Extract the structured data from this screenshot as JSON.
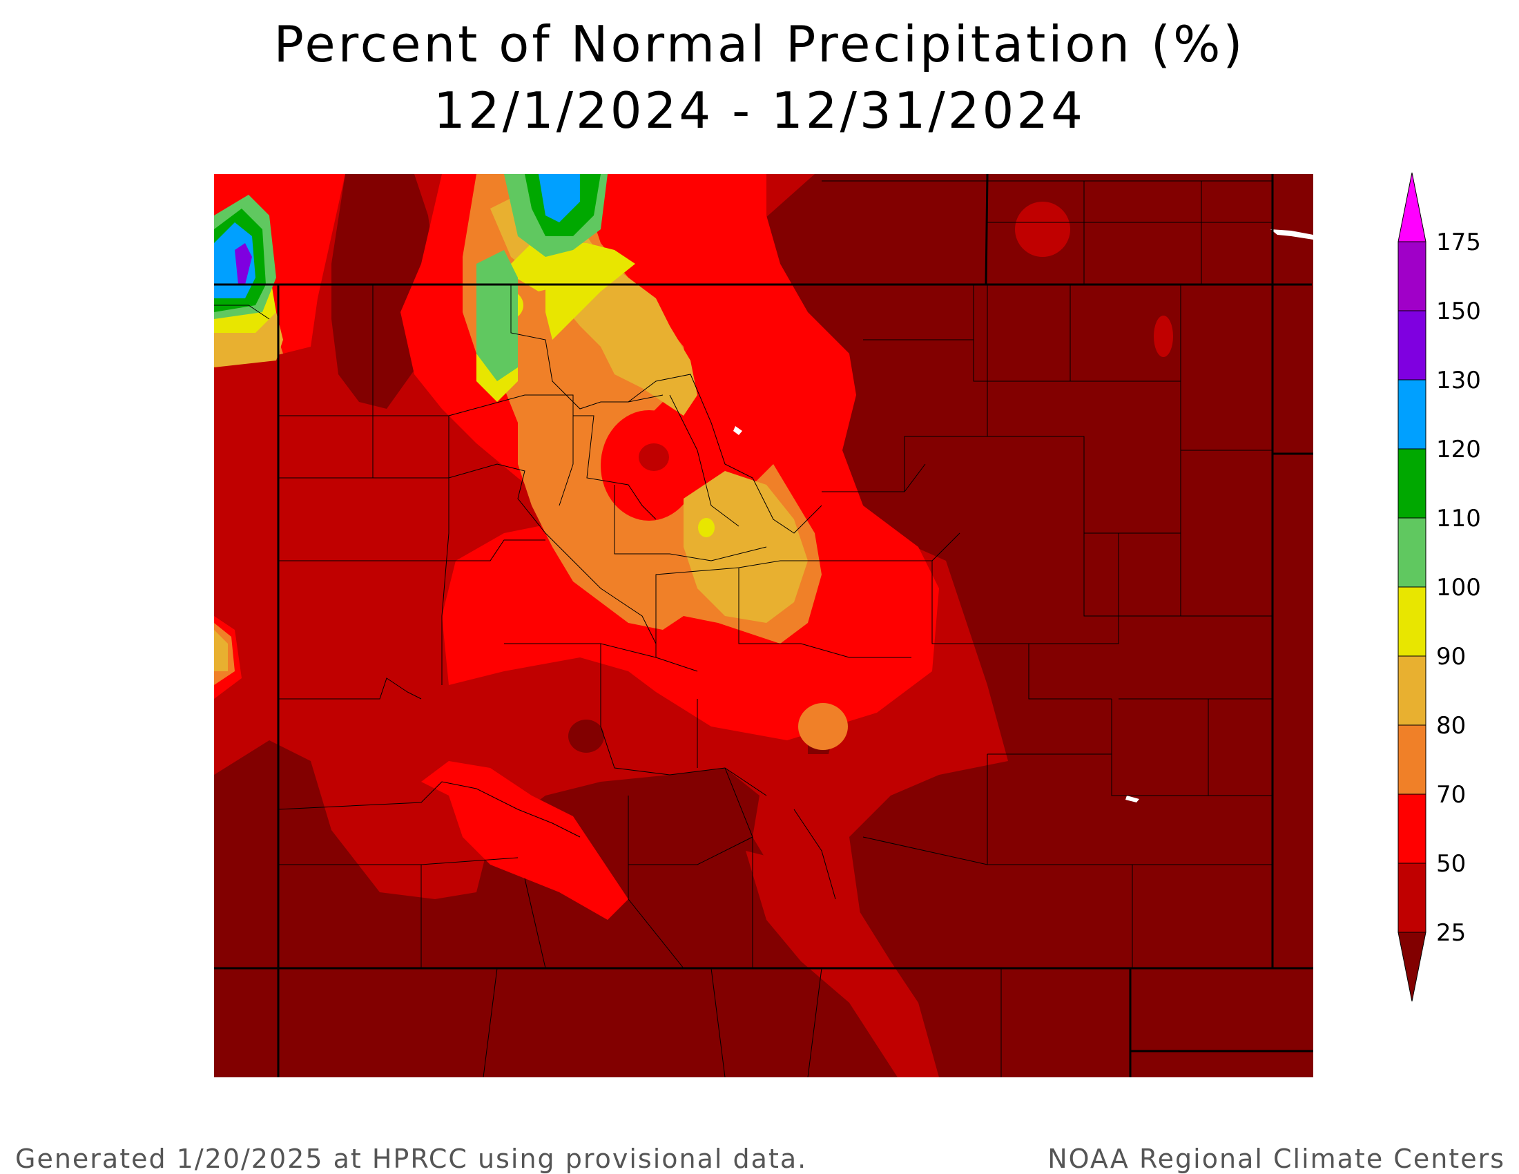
{
  "title": "Percent of Normal Precipitation (%)",
  "subtitle": "12/1/2024 - 12/31/2024",
  "legend": {
    "items": [
      {
        "label": "25",
        "color": "#820000"
      },
      {
        "label": "50",
        "color": "#c00000"
      },
      {
        "label": "70",
        "color": "#ff0000"
      },
      {
        "label": "80",
        "color": "#f08028"
      },
      {
        "label": "90",
        "color": "#e8b030"
      },
      {
        "label": "100",
        "color": "#e8e600"
      },
      {
        "label": "110",
        "color": "#60c860"
      },
      {
        "label": "120",
        "color": "#00a800"
      },
      {
        "label": "130",
        "color": "#00a0ff"
      },
      {
        "label": "150",
        "color": "#7f00e0"
      },
      {
        "label": "175",
        "color": "#a000c8"
      }
    ],
    "over_color": "#ff00ff",
    "under_color": "#820000"
  },
  "footer_left": "Generated 1/20/2025 at HPRCC using provisional data.",
  "footer_right": "NOAA Regional Climate Centers"
}
